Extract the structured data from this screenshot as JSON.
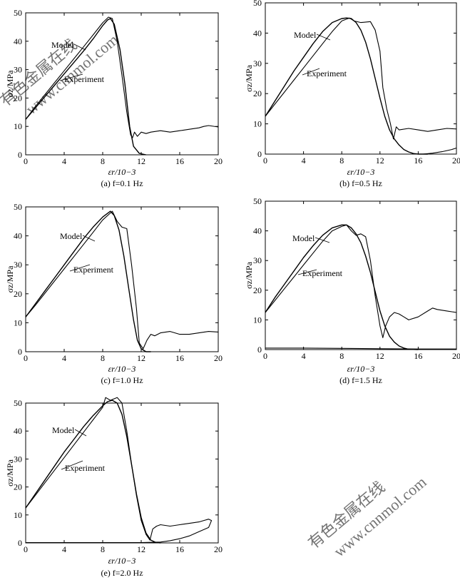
{
  "watermark": {
    "line1": "有色金属在线",
    "line2": "www.cnnmol.com"
  },
  "chart_data": [
    {
      "type": "line",
      "panel": "a",
      "caption": "(a)  f=0.1 Hz",
      "title": "",
      "xlabel": "εr/10−3",
      "ylabel": "σz/MPa",
      "xlim": [
        0,
        20
      ],
      "ylim": [
        0,
        50
      ],
      "xticks": [
        0,
        4,
        8,
        12,
        16,
        20
      ],
      "yticks": [
        0,
        10,
        20,
        30,
        40,
        50
      ],
      "annotations": [
        "Model",
        "Experiment"
      ],
      "series": [
        {
          "name": "Model",
          "x": [
            0,
            1,
            2,
            3,
            4,
            5,
            6,
            7,
            8,
            8.5,
            8.8,
            9.2,
            9.8,
            10.3,
            10.8,
            11.2,
            11.8,
            12.5
          ],
          "y": [
            12.5,
            16.5,
            20.5,
            24.5,
            28.5,
            32.5,
            36.5,
            40.8,
            45.5,
            47.5,
            48.0,
            46.0,
            37.0,
            25.0,
            10.0,
            3.0,
            0.5,
            0
          ]
        },
        {
          "name": "Experiment",
          "x": [
            0,
            1,
            2,
            3,
            4,
            5,
            6,
            7,
            8,
            8.6,
            9.0,
            9.5,
            10.0,
            10.5,
            10.9,
            11.1,
            11.3,
            11.6,
            12.0,
            12.5,
            13.0,
            14.0,
            15.0,
            16.0,
            17.0,
            18.0,
            18.5,
            19.0,
            20.0
          ],
          "y": [
            12.5,
            17.0,
            21.2,
            25.4,
            29.6,
            33.8,
            38.0,
            42.2,
            46.5,
            48.5,
            48.0,
            40.0,
            28.0,
            15.0,
            7.0,
            6.0,
            8.0,
            6.5,
            8.0,
            7.5,
            8.0,
            8.5,
            8.0,
            8.5,
            9.0,
            9.5,
            10.0,
            10.3,
            9.8
          ]
        }
      ]
    },
    {
      "type": "line",
      "panel": "b",
      "caption": "(b)  f=0.5 Hz",
      "title": "",
      "xlabel": "εr/10−3",
      "ylabel": "σz/MPa",
      "xlim": [
        0,
        20
      ],
      "ylim": [
        0,
        50
      ],
      "xticks": [
        0,
        4,
        8,
        12,
        16,
        20
      ],
      "yticks": [
        0,
        10,
        20,
        30,
        40,
        50
      ],
      "annotations": [
        "Model",
        "Experiment"
      ],
      "series": [
        {
          "name": "Model",
          "x": [
            0,
            1,
            2,
            3,
            4,
            5,
            6,
            7,
            8,
            8.5,
            9.0,
            9.5,
            10.0,
            10.5,
            11.0,
            11.5,
            12.0,
            12.5,
            13.0,
            13.5,
            14.0,
            14.5,
            15.0,
            15.5,
            16.0,
            17.0
          ],
          "y": [
            12.5,
            17.5,
            22.5,
            27.5,
            32.0,
            36.5,
            40.5,
            43.5,
            44.8,
            45.0,
            44.8,
            43.5,
            41.0,
            37.0,
            31.5,
            25.0,
            18.5,
            12.5,
            8.0,
            5.0,
            3.0,
            1.5,
            0.7,
            0.2,
            0,
            0
          ]
        },
        {
          "name": "Experiment",
          "x": [
            0,
            1,
            2,
            3,
            4,
            5,
            6,
            7,
            8,
            8.8,
            9.3,
            10.0,
            11.0,
            11.5,
            12.0,
            12.3,
            12.7,
            13.1,
            13.4,
            13.7,
            14.0,
            15.0,
            16.0,
            17.0,
            18.0,
            19.0,
            20.0
          ],
          "y": [
            12.5,
            16.5,
            20.5,
            24.5,
            28.5,
            32.5,
            36.5,
            40.5,
            44.0,
            45.0,
            44.0,
            43.5,
            43.8,
            41.0,
            34.0,
            22.0,
            15.0,
            10.0,
            5.0,
            9.0,
            8.0,
            8.5,
            8.0,
            7.5,
            8.0,
            8.5,
            8.3
          ]
        },
        {
          "name": "Experiment unloading tail",
          "x": [
            16.5,
            17.5,
            18.5,
            19.5,
            20.0
          ],
          "y": [
            0,
            0.3,
            0.8,
            1.5,
            2.0
          ]
        }
      ]
    },
    {
      "type": "line",
      "panel": "c",
      "caption": "(c)  f=1.0 Hz",
      "title": "",
      "xlabel": "εr/10−3",
      "ylabel": "σz/MPa",
      "xlim": [
        0,
        20
      ],
      "ylim": [
        0,
        50
      ],
      "xticks": [
        0,
        4,
        8,
        12,
        16,
        20
      ],
      "yticks": [
        0,
        10,
        20,
        30,
        40,
        50
      ],
      "annotations": [
        "Model",
        "Experiment"
      ],
      "series": [
        {
          "name": "Model",
          "x": [
            0,
            1,
            2,
            3,
            4,
            5,
            6,
            7,
            8,
            8.8,
            9.2,
            9.7,
            10.2,
            10.7,
            11.2,
            11.6,
            12.0,
            12.5,
            13.0
          ],
          "y": [
            12.0,
            16.5,
            21.0,
            25.5,
            30.0,
            34.5,
            39.0,
            43.0,
            46.5,
            48.5,
            47.0,
            42.0,
            33.0,
            22.0,
            11.0,
            4.0,
            1.0,
            0,
            0
          ]
        },
        {
          "name": "Experiment",
          "x": [
            0,
            1,
            2,
            3,
            4,
            5,
            6,
            7,
            8,
            9.0,
            9.5,
            10.0,
            10.5,
            11.0,
            11.5,
            11.8,
            12.2,
            12.6,
            13.0,
            13.4,
            14.0,
            15.0,
            16.0,
            17.0,
            18.0,
            19.0,
            20.0
          ],
          "y": [
            12.0,
            16.0,
            20.2,
            24.4,
            28.6,
            32.8,
            37.0,
            41.2,
            45.5,
            48.5,
            45.0,
            43.0,
            42.5,
            30.0,
            15.0,
            3.0,
            1.0,
            4.0,
            6.0,
            5.5,
            6.5,
            7.0,
            6.0,
            6.0,
            6.5,
            7.0,
            6.8
          ]
        }
      ]
    },
    {
      "type": "line",
      "panel": "d",
      "caption": "(d)  f=1.5 Hz",
      "title": "",
      "xlabel": "εr/10−3",
      "ylabel": "σz/MPa",
      "xlim": [
        0,
        20
      ],
      "ylim": [
        0,
        50
      ],
      "xticks": [
        0,
        4,
        8,
        12,
        16,
        20
      ],
      "yticks": [
        0,
        10,
        20,
        30,
        40,
        50
      ],
      "annotations": [
        "Model",
        "Experiment"
      ],
      "series": [
        {
          "name": "Model",
          "x": [
            0,
            1,
            2,
            3,
            4,
            5,
            6,
            7,
            8,
            8.5,
            9.0,
            9.5,
            10.0,
            10.5,
            11.0,
            11.5,
            12.0,
            12.5,
            13.0,
            13.5,
            14.0,
            14.5,
            15.0,
            16.0
          ],
          "y": [
            12.5,
            17.5,
            22.0,
            26.5,
            31.0,
            35.0,
            38.5,
            41.0,
            42.0,
            42.0,
            41.0,
            39.0,
            36.0,
            31.5,
            26.0,
            19.5,
            13.0,
            8.0,
            4.5,
            2.5,
            1.2,
            0.5,
            0.1,
            0
          ]
        },
        {
          "name": "Experiment",
          "x": [
            0,
            1,
            2,
            3,
            4,
            5,
            6,
            7,
            8,
            8.5,
            9.0,
            9.5,
            10.0,
            10.5,
            11.0,
            11.5,
            12.0,
            12.3,
            12.6,
            13.0,
            13.5,
            14.0,
            14.5,
            15.0,
            16.0,
            17.0,
            17.5,
            18.0,
            19.0,
            20.0
          ],
          "y": [
            12.5,
            16.5,
            20.5,
            24.5,
            28.5,
            32.5,
            36.5,
            40.0,
            41.5,
            42.0,
            40.0,
            38.5,
            39.0,
            38.0,
            30.0,
            18.0,
            8.0,
            4.0,
            8.0,
            11.0,
            12.5,
            12.0,
            11.0,
            10.0,
            11.0,
            13.0,
            14.0,
            13.5,
            13.0,
            12.5
          ]
        },
        {
          "name": "Experiment unloading tail",
          "x": [
            0,
            4,
            8,
            12,
            16,
            20
          ],
          "y": [
            0.5,
            0.5,
            0.4,
            0.3,
            0.2,
            0.2
          ]
        }
      ]
    },
    {
      "type": "line",
      "panel": "e",
      "caption": "(e)  f=2.0 Hz",
      "title": "",
      "xlabel": "εr/10−3",
      "ylabel": "σz/MPa",
      "xlim": [
        0,
        20
      ],
      "ylim": [
        0,
        50
      ],
      "xticks": [
        0,
        4,
        8,
        12,
        16,
        20
      ],
      "yticks": [
        0,
        10,
        20,
        30,
        40,
        50
      ],
      "annotations": [
        "Model",
        "Experiment"
      ],
      "series": [
        {
          "name": "Model",
          "x": [
            0,
            1,
            2,
            3,
            4,
            5,
            6,
            7,
            8,
            8.5,
            9.0,
            9.5,
            10.0,
            10.5,
            11.0,
            11.5,
            12.0,
            12.5,
            13.0,
            13.5,
            14.0
          ],
          "y": [
            12.5,
            17.5,
            22.5,
            27.5,
            32.5,
            37.0,
            41.5,
            45.5,
            49.0,
            50.5,
            51.0,
            50.0,
            46.0,
            38.0,
            28.0,
            17.5,
            9.0,
            3.5,
            1.0,
            0.2,
            0
          ]
        },
        {
          "name": "Experiment",
          "x": [
            0,
            1,
            2,
            3,
            4,
            5,
            6,
            7,
            8,
            8.3,
            8.8,
            9.5,
            10.0,
            10.5,
            11.0,
            11.5,
            12.0,
            12.5,
            12.9,
            13.2,
            13.6,
            14.0,
            15.0,
            16.0,
            17.0,
            18.0,
            18.5,
            19.0,
            19.3,
            19.0,
            18.0,
            17.0,
            16.0,
            15.0,
            14.0,
            12.0,
            8.0,
            4.0,
            0
          ],
          "y": [
            12.5,
            17.0,
            21.5,
            26.0,
            30.5,
            35.0,
            39.5,
            44.0,
            48.5,
            52.0,
            51.0,
            52.0,
            50.0,
            40.0,
            28.0,
            17.0,
            8.0,
            3.0,
            1.0,
            5.0,
            6.0,
            6.5,
            6.0,
            6.5,
            7.0,
            7.5,
            8.0,
            8.5,
            8.0,
            5.5,
            4.0,
            2.5,
            1.5,
            0.8,
            0.3,
            0.1,
            0.1,
            0.1,
            0.1
          ]
        }
      ]
    }
  ]
}
